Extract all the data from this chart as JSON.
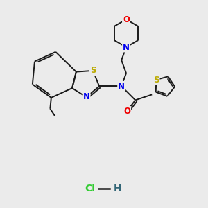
{
  "background_color": "#ebebeb",
  "bond_color": "#1a1a1a",
  "atom_colors": {
    "N": "#0000ee",
    "O": "#ee0000",
    "S": "#bbaa00",
    "Cl": "#33cc33",
    "H": "#336677"
  },
  "figsize": [
    3.0,
    3.0
  ],
  "dpi": 100
}
